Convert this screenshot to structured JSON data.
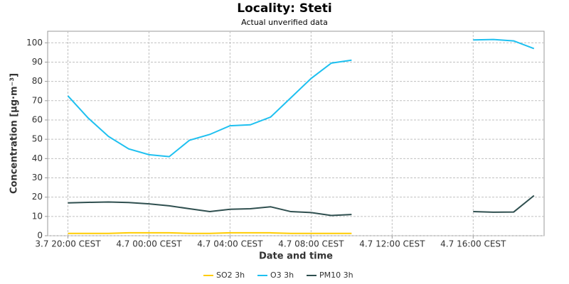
{
  "chart_data": {
    "type": "line",
    "title": "Locality: Steti",
    "subtitle": "Actual unverified data",
    "x_label": "Date and time",
    "y_label": "Concentration [µg·m⁻³]",
    "x": [
      20,
      21,
      22,
      23,
      24,
      25,
      26,
      27,
      28,
      29,
      30,
      31,
      32,
      33,
      34,
      35,
      36,
      37,
      38,
      39,
      40,
      41,
      42,
      43
    ],
    "series": [
      {
        "name": "SO2 3h",
        "color": "#ffcc00",
        "values": [
          1.2,
          1.2,
          1.2,
          1.5,
          1.5,
          1.5,
          1.2,
          1.2,
          1.5,
          1.5,
          1.5,
          1.2,
          1.2,
          1.2,
          1.2,
          null,
          null,
          null,
          null,
          null,
          null,
          null,
          null,
          null
        ]
      },
      {
        "name": "O3 3h",
        "color": "#1ec0f0",
        "values": [
          72.5,
          61,
          51.5,
          45,
          42,
          41,
          49.5,
          52.5,
          57,
          57.5,
          61.5,
          71.5,
          81.5,
          89.5,
          91,
          null,
          null,
          null,
          null,
          null,
          101.5,
          101.7,
          101,
          97
        ]
      },
      {
        "name": "PM10 3h",
        "color": "#2f4f4f",
        "values": [
          17,
          17.3,
          17.5,
          17.2,
          16.5,
          15.5,
          14,
          12.5,
          13.7,
          14,
          15,
          12.5,
          12,
          10.5,
          11,
          null,
          null,
          null,
          null,
          null,
          12.5,
          12.2,
          12.3,
          20.8
        ]
      }
    ],
    "xlim": [
      19,
      43.5
    ],
    "xticks": [
      {
        "value": 20,
        "label": "3.7 20:00 CEST"
      },
      {
        "value": 24,
        "label": "4.7 00:00 CEST"
      },
      {
        "value": 28,
        "label": "4.7 04:00 CEST"
      },
      {
        "value": 32,
        "label": "4.7 08:00 CEST"
      },
      {
        "value": 36,
        "label": "4.7 12:00 CEST"
      },
      {
        "value": 40,
        "label": "4.7 16:00 CEST"
      }
    ],
    "ylim": [
      0,
      106
    ],
    "yticks": [
      0,
      10,
      20,
      30,
      40,
      50,
      60,
      70,
      80,
      90,
      100
    ],
    "grid": true,
    "legend": "bottom"
  }
}
